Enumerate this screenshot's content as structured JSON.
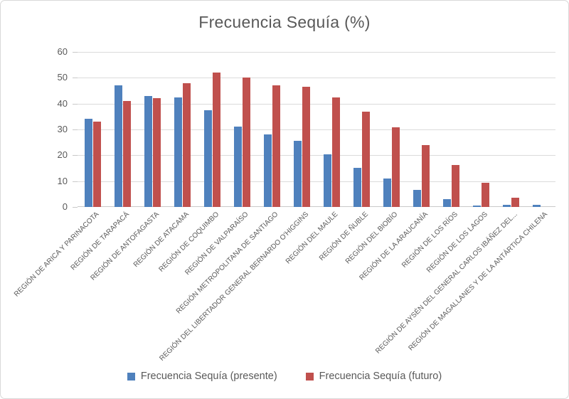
{
  "chart_data": {
    "type": "bar",
    "title": "Frecuencia Sequía (%)",
    "xlabel": "",
    "ylabel": "",
    "ylim": [
      0,
      60
    ],
    "yticks": [
      0,
      10,
      20,
      30,
      40,
      50,
      60
    ],
    "grid": true,
    "legend_position": "bottom",
    "categories": [
      "REGIÓN DE ARICA Y PARINACOTA",
      "REGIÓN DE TARAPACÁ",
      "REGIÓN DE ANTOFAGASTA",
      "REGIÓN DE ATACAMA",
      "REGIÓN DE COQUIMBO",
      "REGIÓN DE VALPARAÍSO",
      "REGIÓN METROPOLITANA DE SANTIAGO",
      "REGIÓN DEL LIBERTADOR GENERAL BERNARDO O'HIGGINS",
      "REGIÓN DEL MAULE",
      "REGIÓN DE ÑUBLE",
      "REGIÓN DEL BIOBÍO",
      "REGIÓN DE LA ARAUCANÍA",
      "REGIÓN DE LOS RÍOS",
      "REGIÓN DE LOS LAGOS",
      "REGIÓN DE AYSÉN DEL GENERAL CARLOS IBÁÑEZ DEL...",
      "REGIÓN DE MAGALLANES Y DE LA ANTÁRTICA CHILENA"
    ],
    "series": [
      {
        "name": "Frecuencia Sequía (presente)",
        "color": "#4F81BD",
        "values": [
          34,
          47,
          43,
          42.5,
          37.5,
          31,
          28,
          25.5,
          20.3,
          15.2,
          11,
          6.5,
          3,
          0.5,
          0.7,
          0.7
        ]
      },
      {
        "name": "Frecuencia Sequía (futuro)",
        "color": "#C0504D",
        "values": [
          33,
          41,
          42,
          48,
          52,
          50,
          47,
          46.5,
          42.5,
          37,
          30.7,
          24,
          16.2,
          9.3,
          3.5,
          0
        ]
      }
    ],
    "colors": {
      "grid": "#DBDBDB",
      "axis": "#C9C9C9",
      "text": "#595959",
      "background": "#FFFFFF",
      "frame_border": "#D9D9D9"
    }
  }
}
